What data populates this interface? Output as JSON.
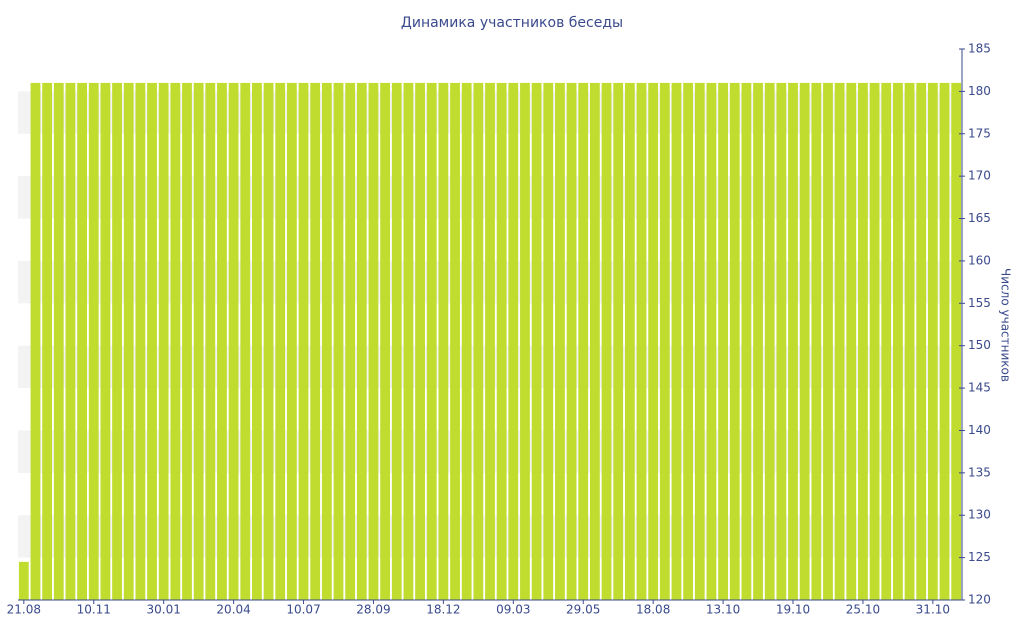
{
  "chart_data": {
    "type": "bar",
    "title": "Динамика участников беседы",
    "y_axis_label": "Число участников",
    "categories": [
      "21.08",
      null,
      null,
      null,
      null,
      null,
      "10.11",
      null,
      null,
      null,
      null,
      null,
      "30.01",
      null,
      null,
      null,
      null,
      null,
      "20.04",
      null,
      null,
      null,
      null,
      null,
      "10.07",
      null,
      null,
      null,
      null,
      null,
      "28.09",
      null,
      null,
      null,
      null,
      null,
      "18.12",
      null,
      null,
      null,
      null,
      null,
      "09.03",
      null,
      null,
      null,
      null,
      null,
      "29.05",
      null,
      null,
      null,
      null,
      null,
      "18.08",
      null,
      null,
      null,
      null,
      null,
      "13.10",
      null,
      null,
      null,
      null,
      null,
      "19.10",
      null,
      null,
      null,
      null,
      null,
      "25.10",
      null,
      null,
      null,
      null,
      null,
      "31.10",
      null,
      null
    ],
    "values": [
      124.5,
      181,
      181,
      181,
      181,
      181,
      181,
      181,
      181,
      181,
      181,
      181,
      181,
      181,
      181,
      181,
      181,
      181,
      181,
      181,
      181,
      181,
      181,
      181,
      181,
      181,
      181,
      181,
      181,
      181,
      181,
      181,
      181,
      181,
      181,
      181,
      181,
      181,
      181,
      181,
      181,
      181,
      181,
      181,
      181,
      181,
      181,
      181,
      181,
      181,
      181,
      181,
      181,
      181,
      181,
      181,
      181,
      181,
      181,
      181,
      181,
      181,
      181,
      181,
      181,
      181,
      181,
      181,
      181,
      181,
      181,
      181,
      181,
      181,
      181,
      181,
      181,
      181,
      181,
      181,
      181
    ],
    "color": "#c0dc2e",
    "ylim": [
      120,
      185
    ],
    "yticks": [
      120,
      125,
      130,
      135,
      140,
      145,
      150,
      155,
      160,
      165,
      170,
      175,
      180,
      185
    ],
    "y_axis_side": "right",
    "grid": true
  }
}
